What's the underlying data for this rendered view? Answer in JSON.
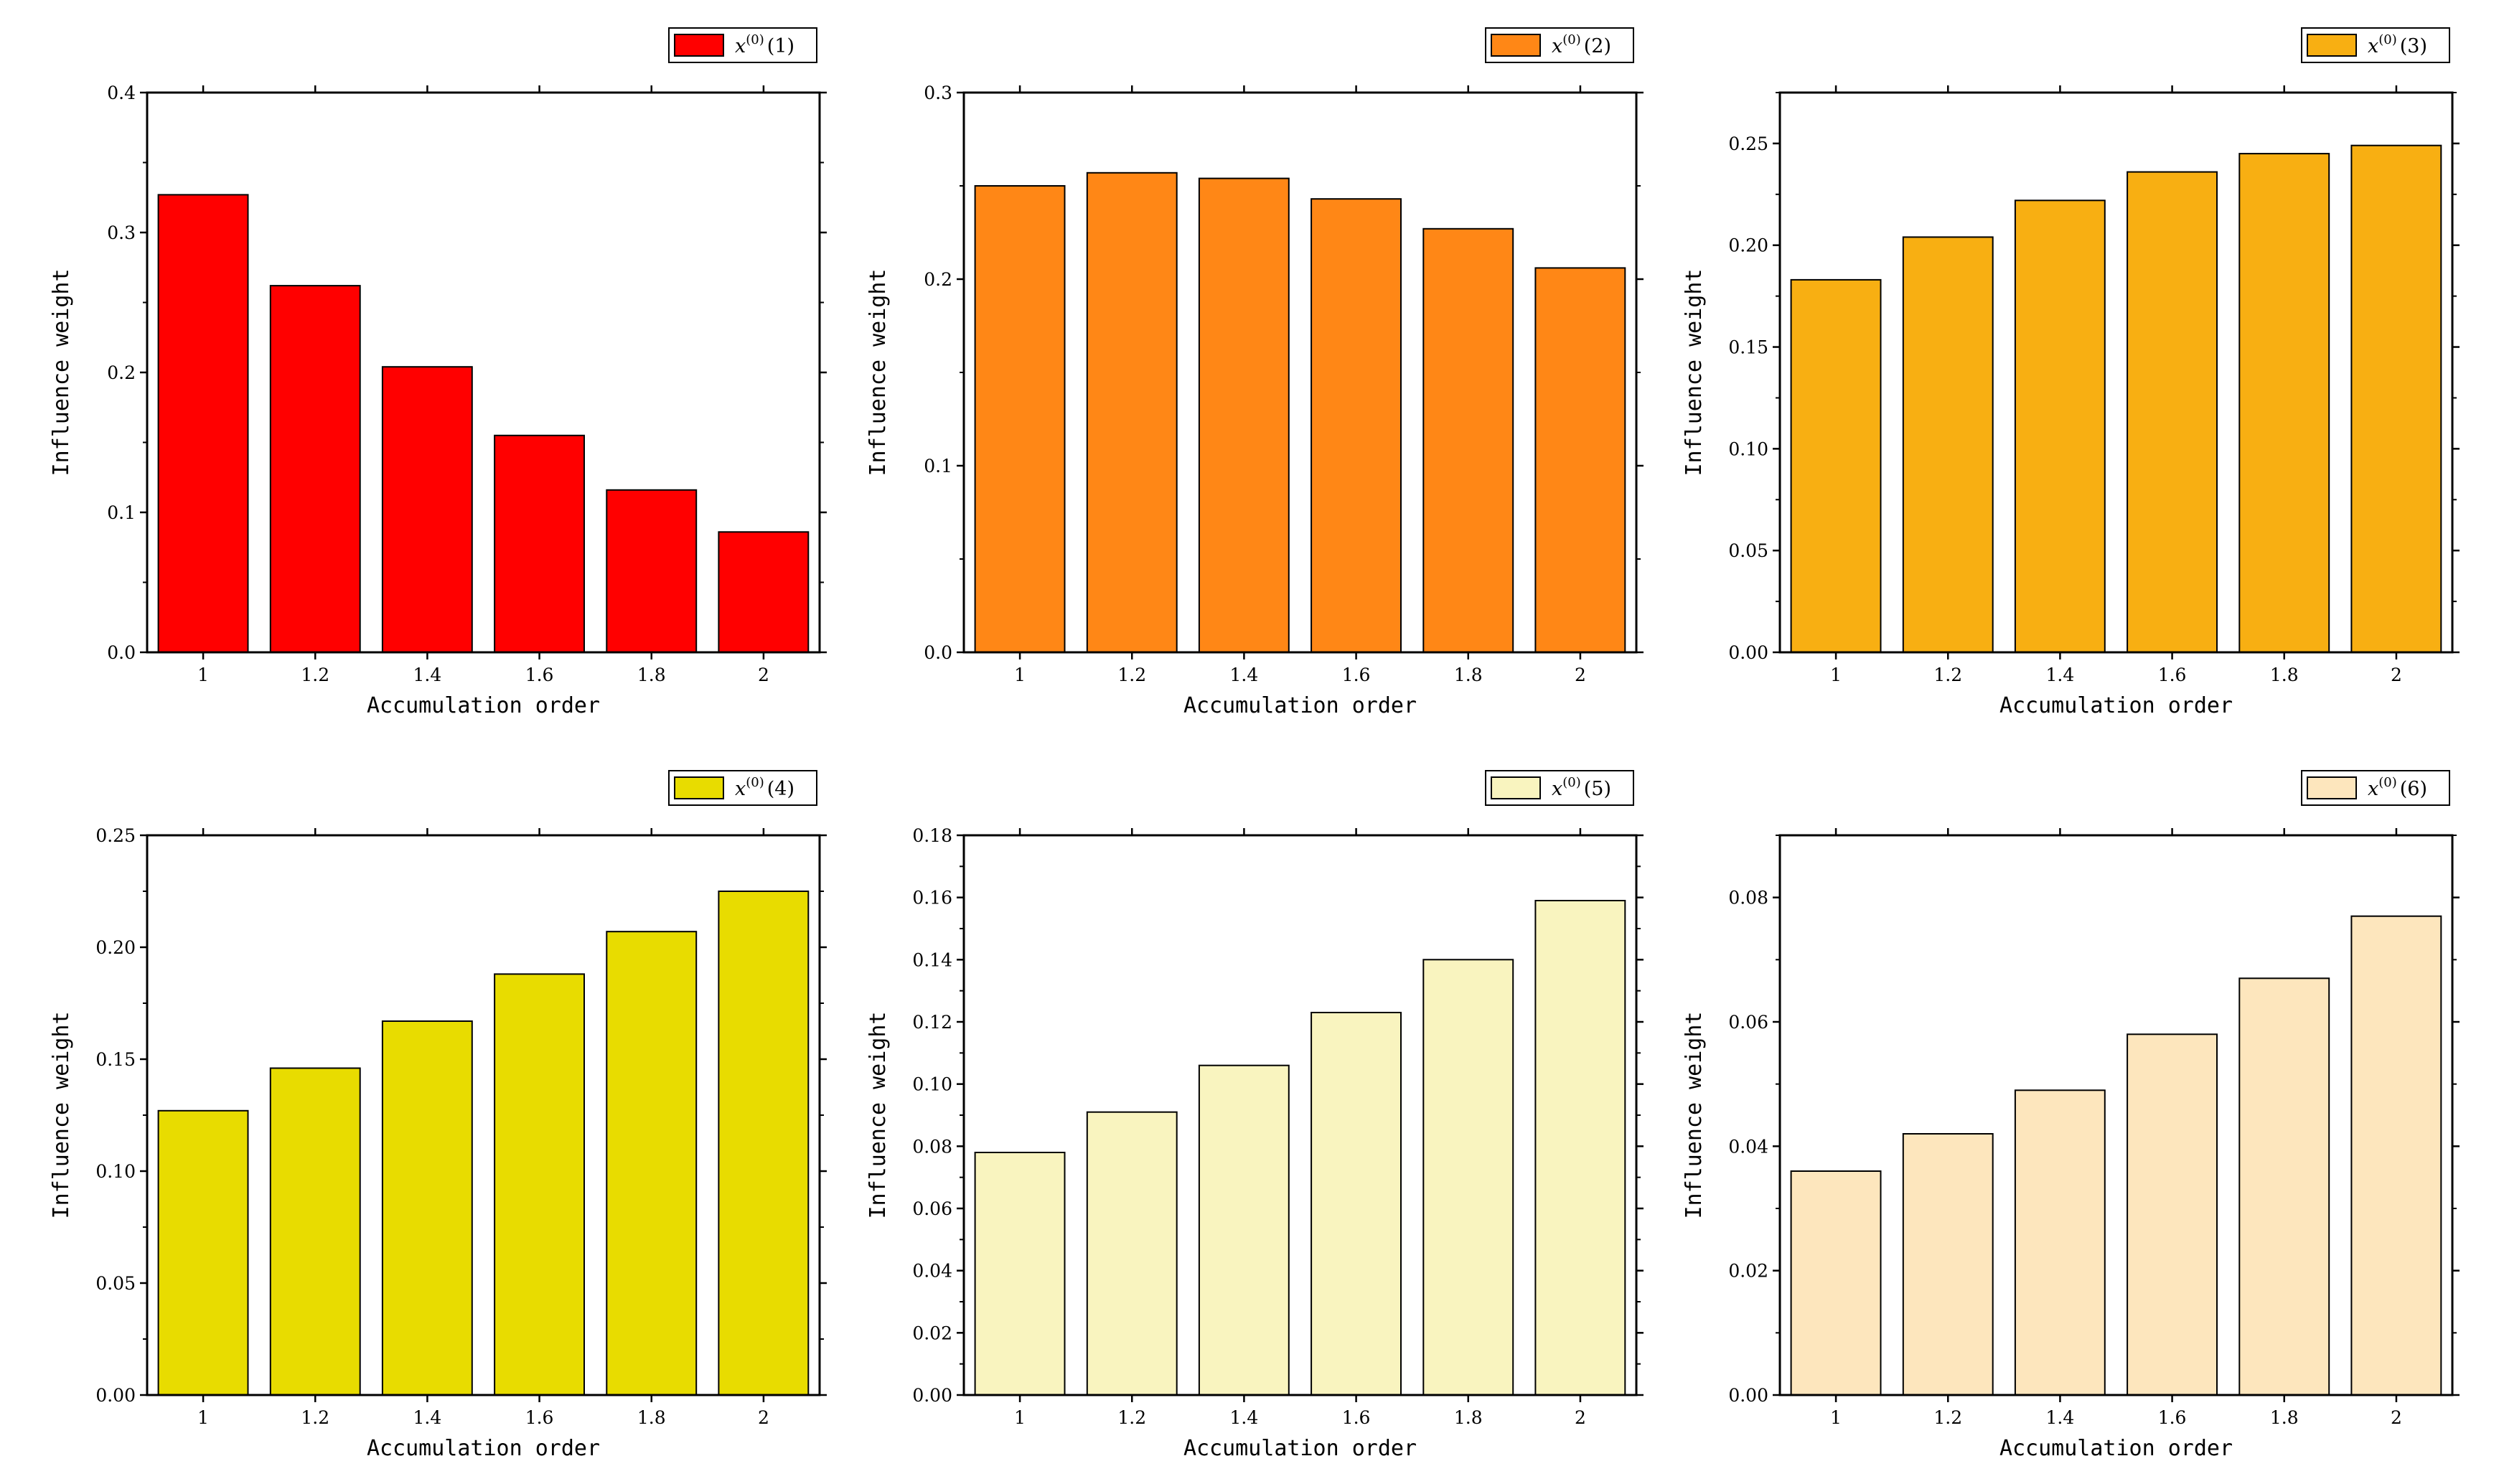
{
  "chart_data": [
    {
      "type": "bar",
      "legend": {
        "var": "x",
        "sup": "(0)",
        "label": "(1)",
        "position": "top-right"
      },
      "color": "#ff0000",
      "xlabel": "Accumulation order",
      "ylabel": "Influence weight",
      "categories": [
        "1",
        "1.2",
        "1.4",
        "1.6",
        "1.8",
        "2"
      ],
      "values": [
        0.327,
        0.262,
        0.204,
        0.155,
        0.116,
        0.086
      ],
      "ylim": [
        0,
        0.4
      ],
      "yticks": [
        "0.0",
        "0.1",
        "0.2",
        "0.3",
        "0.4"
      ],
      "grid": false
    },
    {
      "type": "bar",
      "legend": {
        "var": "x",
        "sup": "(0)",
        "label": "(2)",
        "position": "top-right"
      },
      "color": "#ff8716",
      "xlabel": "Accumulation order",
      "ylabel": "Influence weight",
      "categories": [
        "1",
        "1.2",
        "1.4",
        "1.6",
        "1.8",
        "2"
      ],
      "values": [
        0.25,
        0.257,
        0.254,
        0.243,
        0.227,
        0.206
      ],
      "ylim": [
        0,
        0.3
      ],
      "yticks": [
        "0.0",
        "0.1",
        "0.2",
        "0.3"
      ],
      "grid": false
    },
    {
      "type": "bar",
      "legend": {
        "var": "x",
        "sup": "(0)",
        "label": "(3)",
        "position": "top-right"
      },
      "color": "#f8af12",
      "xlabel": "Accumulation order",
      "ylabel": "Influence weight",
      "categories": [
        "1",
        "1.2",
        "1.4",
        "1.6",
        "1.8",
        "2"
      ],
      "values": [
        0.183,
        0.204,
        0.222,
        0.236,
        0.245,
        0.249
      ],
      "ylim": [
        0,
        0.275
      ],
      "yticks": [
        "0.00",
        "0.05",
        "0.10",
        "0.15",
        "0.20",
        "0.25"
      ],
      "grid": false
    },
    {
      "type": "bar",
      "legend": {
        "var": "x",
        "sup": "(0)",
        "label": "(4)",
        "position": "top-right"
      },
      "color": "#e8dc00",
      "xlabel": "Accumulation order",
      "ylabel": "Influence weight",
      "categories": [
        "1",
        "1.2",
        "1.4",
        "1.6",
        "1.8",
        "2"
      ],
      "values": [
        0.127,
        0.146,
        0.167,
        0.188,
        0.207,
        0.225
      ],
      "ylim": [
        0,
        0.25
      ],
      "yticks": [
        "0.00",
        "0.05",
        "0.10",
        "0.15",
        "0.20",
        "0.25"
      ],
      "grid": false
    },
    {
      "type": "bar",
      "legend": {
        "var": "x",
        "sup": "(0)",
        "label": "(5)",
        "position": "top-right"
      },
      "color": "#f9f4bf",
      "xlabel": "Accumulation order",
      "ylabel": "Influence weight",
      "categories": [
        "1",
        "1.2",
        "1.4",
        "1.6",
        "1.8",
        "2"
      ],
      "values": [
        0.078,
        0.091,
        0.106,
        0.123,
        0.14,
        0.159
      ],
      "ylim": [
        0,
        0.18
      ],
      "yticks": [
        "0.00",
        "0.02",
        "0.04",
        "0.06",
        "0.08",
        "0.10",
        "0.12",
        "0.14",
        "0.16",
        "0.18"
      ],
      "grid": false
    },
    {
      "type": "bar",
      "legend": {
        "var": "x",
        "sup": "(0)",
        "label": "(6)",
        "position": "top-right"
      },
      "color": "#fde6bd",
      "xlabel": "Accumulation order",
      "ylabel": "Influence weight",
      "categories": [
        "1",
        "1.2",
        "1.4",
        "1.6",
        "1.8",
        "2"
      ],
      "values": [
        0.036,
        0.042,
        0.049,
        0.058,
        0.067,
        0.077
      ],
      "ylim": [
        0,
        0.09
      ],
      "yticks": [
        "0.00",
        "0.02",
        "0.04",
        "0.06",
        "0.08"
      ],
      "grid": false
    }
  ]
}
